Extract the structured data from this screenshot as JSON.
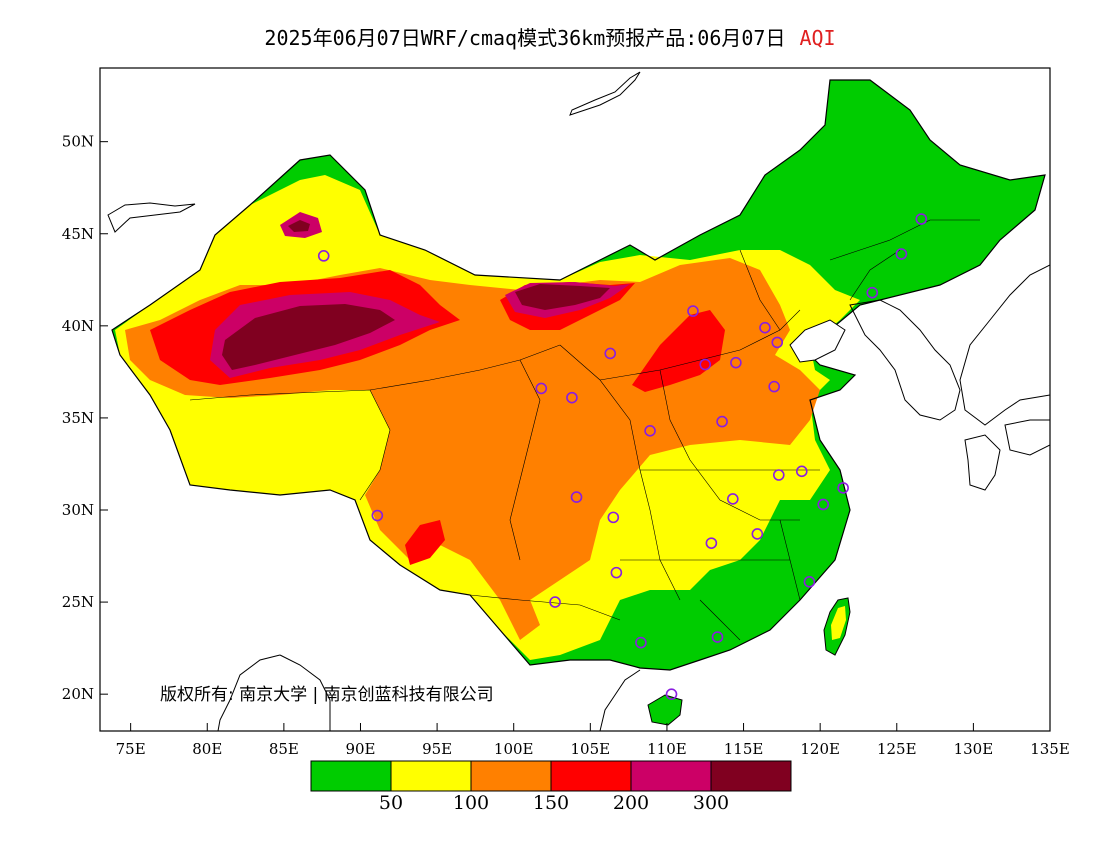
{
  "title": {
    "main": "2025年06月07日WRF/cmaq模式36km预报产品:06月07日",
    "variable": "AQI"
  },
  "axes": {
    "lat_labels": [
      "50N",
      "45N",
      "40N",
      "35N",
      "30N",
      "25N",
      "20N"
    ],
    "lat_values": [
      50,
      45,
      40,
      35,
      30,
      25,
      20
    ],
    "lon_labels": [
      "75E",
      "80E",
      "85E",
      "90E",
      "95E",
      "100E",
      "105E",
      "110E",
      "115E",
      "120E",
      "125E",
      "130E",
      "135E"
    ],
    "lon_values": [
      75,
      80,
      85,
      90,
      95,
      100,
      105,
      110,
      115,
      120,
      125,
      130,
      135
    ],
    "lon_range": [
      73,
      135
    ],
    "lat_range": [
      18,
      54
    ]
  },
  "copyright": "版权所有: 南京大学 | 南京创蓝科技有限公司",
  "legend": {
    "colors": [
      "#00cc00",
      "#ffff00",
      "#ff8000",
      "#ff0000",
      "#cc0066",
      "#800020"
    ],
    "labels": [
      "50",
      "100",
      "150",
      "200",
      "300"
    ]
  },
  "cities": [
    {
      "lon": 126.6,
      "lat": 45.8
    },
    {
      "lon": 125.3,
      "lat": 43.9
    },
    {
      "lon": 123.4,
      "lat": 41.8
    },
    {
      "lon": 116.4,
      "lat": 39.9
    },
    {
      "lon": 117.2,
      "lat": 39.1
    },
    {
      "lon": 114.5,
      "lat": 38.0
    },
    {
      "lon": 112.5,
      "lat": 37.9
    },
    {
      "lon": 111.7,
      "lat": 40.8
    },
    {
      "lon": 117.0,
      "lat": 36.7
    },
    {
      "lon": 113.6,
      "lat": 34.8
    },
    {
      "lon": 108.9,
      "lat": 34.3
    },
    {
      "lon": 106.3,
      "lat": 38.5
    },
    {
      "lon": 103.8,
      "lat": 36.1
    },
    {
      "lon": 101.8,
      "lat": 36.6
    },
    {
      "lon": 87.6,
      "lat": 43.8
    },
    {
      "lon": 91.1,
      "lat": 29.7
    },
    {
      "lon": 104.1,
      "lat": 30.7
    },
    {
      "lon": 106.5,
      "lat": 29.6
    },
    {
      "lon": 102.7,
      "lat": 25.0
    },
    {
      "lon": 106.7,
      "lat": 26.6
    },
    {
      "lon": 108.3,
      "lat": 22.8
    },
    {
      "lon": 113.3,
      "lat": 23.1
    },
    {
      "lon": 110.3,
      "lat": 20.0
    },
    {
      "lon": 114.3,
      "lat": 30.6
    },
    {
      "lon": 112.9,
      "lat": 28.2
    },
    {
      "lon": 115.9,
      "lat": 28.7
    },
    {
      "lon": 117.3,
      "lat": 31.9
    },
    {
      "lon": 118.8,
      "lat": 32.1
    },
    {
      "lon": 120.2,
      "lat": 30.3
    },
    {
      "lon": 121.5,
      "lat": 31.2
    },
    {
      "lon": 119.3,
      "lat": 26.1
    }
  ]
}
